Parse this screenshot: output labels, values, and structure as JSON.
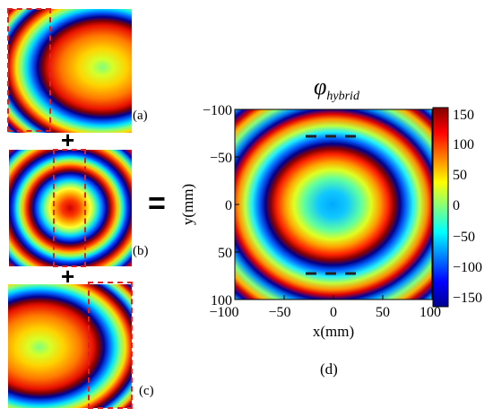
{
  "panels": {
    "a": "(a)",
    "b": "(b)",
    "c": "(c)",
    "d": "(d)"
  },
  "operators": {
    "plus1": "+",
    "plus2": "+",
    "equals": "="
  },
  "main_plot": {
    "title_symbol": "φ",
    "title_subscript": "hybrid",
    "xlabel": "x(mm)",
    "ylabel": "y(mm)",
    "xticks": [
      "−100",
      "−50",
      "0",
      "50",
      "100"
    ],
    "yticks": [
      "−100",
      "−50",
      "0",
      "50",
      "100"
    ],
    "colorbar_ticks": [
      "150",
      "100",
      "50",
      "0",
      "−50",
      "−100",
      "−150"
    ]
  },
  "colors": {
    "highlight_box": "#e02020",
    "colormap": "jet"
  },
  "chart_data": {
    "type": "heatmap",
    "title": "φhybrid",
    "xlabel": "x(mm)",
    "ylabel": "y(mm)",
    "xlim": [
      -100,
      100
    ],
    "ylim": [
      -100,
      100
    ],
    "colorbar_range": [
      -150,
      150
    ],
    "colormap": "jet"
  }
}
